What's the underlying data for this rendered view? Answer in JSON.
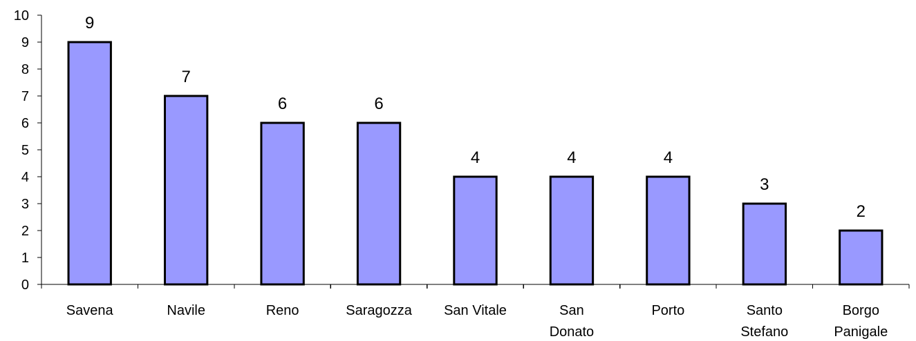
{
  "chart_data": {
    "type": "bar",
    "categories": [
      [
        "Savena"
      ],
      [
        "Navile"
      ],
      [
        "Reno"
      ],
      [
        "Saragozza"
      ],
      [
        "San Vitale"
      ],
      [
        "San",
        "Donato"
      ],
      [
        "Porto"
      ],
      [
        "Santo",
        "Stefano"
      ],
      [
        "Borgo",
        "Panigale"
      ]
    ],
    "values": [
      9,
      7,
      6,
      6,
      4,
      4,
      4,
      3,
      2
    ],
    "title": "",
    "xlabel": "",
    "ylabel": "",
    "ylim": [
      0,
      10
    ],
    "yticks": [
      0,
      1,
      2,
      3,
      4,
      5,
      6,
      7,
      8,
      9,
      10
    ],
    "data_labels": true,
    "grid": false,
    "legend": "none",
    "bar_color": "#9999ff",
    "bar_edge_color": "#000000"
  }
}
